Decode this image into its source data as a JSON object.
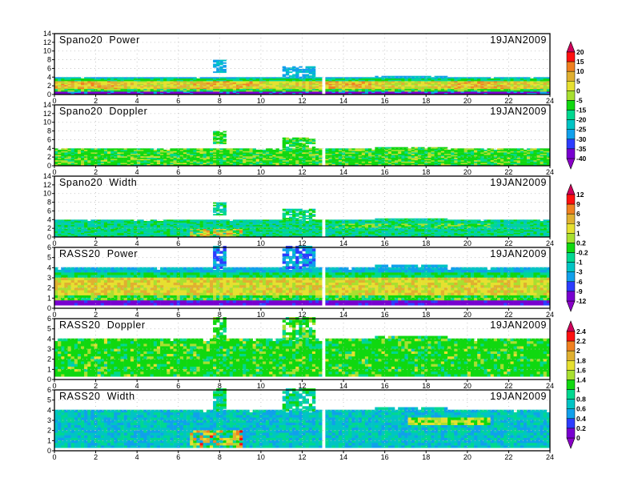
{
  "chart_data": [
    {
      "type": "heatmap",
      "title": "Spano20  Power",
      "date": "19JAN2009",
      "xlabel": "",
      "ylabel": "",
      "xlim": [
        0,
        24
      ],
      "ylim": [
        0,
        14
      ],
      "xticks": [
        "0",
        "2",
        "4",
        "6",
        "8",
        "10",
        "12",
        "14",
        "16",
        "18",
        "20",
        "22",
        "24"
      ],
      "yticks": [
        "0",
        "2",
        "4",
        "6",
        "8",
        "10",
        "12",
        "14"
      ],
      "colorbar": 0,
      "field": "power",
      "grid": true,
      "data_top_km": 3.8,
      "bursts": [
        {
          "t": [
            7.6,
            8.3
          ],
          "h": [
            5.0,
            7.8
          ]
        },
        {
          "t": [
            11.0,
            12.6
          ],
          "h": [
            3.8,
            6.2
          ]
        }
      ],
      "gap_hour": 13.0
    },
    {
      "type": "heatmap",
      "title": "Spano20  Doppler",
      "date": "19JAN2009",
      "xlim": [
        0,
        24
      ],
      "ylim": [
        0,
        14
      ],
      "xticks": [
        "0",
        "2",
        "4",
        "6",
        "8",
        "10",
        "12",
        "14",
        "16",
        "18",
        "20",
        "22",
        "24"
      ],
      "yticks": [
        "0",
        "2",
        "4",
        "6",
        "8",
        "10",
        "12",
        "14"
      ],
      "colorbar": 0,
      "field": "doppler",
      "grid": true,
      "data_top_km": 3.8,
      "bursts": [
        {
          "t": [
            7.6,
            8.3
          ],
          "h": [
            5.0,
            7.8
          ]
        },
        {
          "t": [
            11.0,
            12.6
          ],
          "h": [
            3.8,
            6.2
          ]
        }
      ],
      "gap_hour": 13.0
    },
    {
      "type": "heatmap",
      "title": "Spano20  Width",
      "date": "19JAN2009",
      "xlim": [
        0,
        24
      ],
      "ylim": [
        0,
        14
      ],
      "xticks": [
        "0",
        "2",
        "4",
        "6",
        "8",
        "10",
        "12",
        "14",
        "16",
        "18",
        "20",
        "22",
        "24"
      ],
      "yticks": [
        "0",
        "2",
        "4",
        "6",
        "8",
        "10",
        "12",
        "14"
      ],
      "colorbar": 1,
      "field": "width",
      "grid": true,
      "data_top_km": 3.8,
      "bursts": [
        {
          "t": [
            7.6,
            8.3
          ],
          "h": [
            5.0,
            7.8
          ]
        },
        {
          "t": [
            11.0,
            12.6
          ],
          "h": [
            3.8,
            6.2
          ]
        }
      ],
      "gap_hour": 13.0
    },
    {
      "type": "heatmap",
      "title": "RASS20  Power",
      "date": "19JAN2009",
      "xlim": [
        0,
        24
      ],
      "ylim": [
        0,
        6
      ],
      "xticks": [
        "0",
        "2",
        "4",
        "6",
        "8",
        "10",
        "12",
        "14",
        "16",
        "18",
        "20",
        "22",
        "24"
      ],
      "yticks": [
        "0",
        "1",
        "2",
        "3",
        "4",
        "5",
        "6"
      ],
      "colorbar": 1,
      "field": "rpower",
      "grid": true,
      "data_top_km": 3.9,
      "bursts": [
        {
          "t": [
            7.6,
            8.3
          ],
          "h": [
            3.9,
            6.0
          ]
        },
        {
          "t": [
            11.0,
            12.6
          ],
          "h": [
            3.9,
            6.0
          ]
        }
      ],
      "gap_hour": 13.0
    },
    {
      "type": "heatmap",
      "title": "RASS20  Doppler",
      "date": "19JAN2009",
      "xlim": [
        0,
        24
      ],
      "ylim": [
        0,
        6
      ],
      "xticks": [
        "0",
        "2",
        "4",
        "6",
        "8",
        "10",
        "12",
        "14",
        "16",
        "18",
        "20",
        "22",
        "24"
      ],
      "yticks": [
        "0",
        "1",
        "2",
        "3",
        "4",
        "5",
        "6"
      ],
      "colorbar": 2,
      "field": "rdoppler",
      "grid": true,
      "data_top_km": 3.9,
      "bursts": [
        {
          "t": [
            7.6,
            8.3
          ],
          "h": [
            3.9,
            6.0
          ]
        },
        {
          "t": [
            11.0,
            12.6
          ],
          "h": [
            3.9,
            6.0
          ]
        }
      ],
      "gap_hour": 13.0
    },
    {
      "type": "heatmap",
      "title": "RASS20  Width",
      "date": "19JAN2009",
      "xlim": [
        0,
        24
      ],
      "ylim": [
        0,
        6
      ],
      "xticks": [
        "0",
        "2",
        "4",
        "6",
        "8",
        "10",
        "12",
        "14",
        "16",
        "18",
        "20",
        "22",
        "24"
      ],
      "yticks": [
        "0",
        "1",
        "2",
        "3",
        "4",
        "5",
        "6"
      ],
      "colorbar": 2,
      "field": "rwidth",
      "grid": true,
      "data_top_km": 3.9,
      "bursts": [
        {
          "t": [
            7.6,
            8.3
          ],
          "h": [
            3.9,
            6.0
          ]
        },
        {
          "t": [
            11.0,
            12.6
          ],
          "h": [
            3.9,
            6.0
          ]
        }
      ],
      "gap_hour": 13.0
    }
  ],
  "colorbars": [
    {
      "labels": [
        "20",
        "15",
        "10",
        "5",
        "0",
        "-5",
        "-15",
        "-20",
        "-25",
        "-30",
        "-35",
        "-40"
      ]
    },
    {
      "labels": [
        "12",
        "9",
        "6",
        "3",
        "1",
        "0.2",
        "-0.2",
        "-1",
        "-3",
        "-6",
        "-9",
        "-12"
      ]
    },
    {
      "labels": [
        "2.4",
        "2.2",
        "2",
        "1.8",
        "1.6",
        "1.4",
        "1",
        "0.8",
        "0.6",
        "0.4",
        "0.2",
        "0"
      ]
    }
  ],
  "palette": [
    "#7800d0",
    "#2c3cff",
    "#10a0ec",
    "#00c4c4",
    "#00d890",
    "#10d810",
    "#a8e030",
    "#e6e030",
    "#e0b030",
    "#f08020",
    "#ff1010"
  ],
  "over_color": "#d0005a",
  "under_color": "#8a00c8"
}
